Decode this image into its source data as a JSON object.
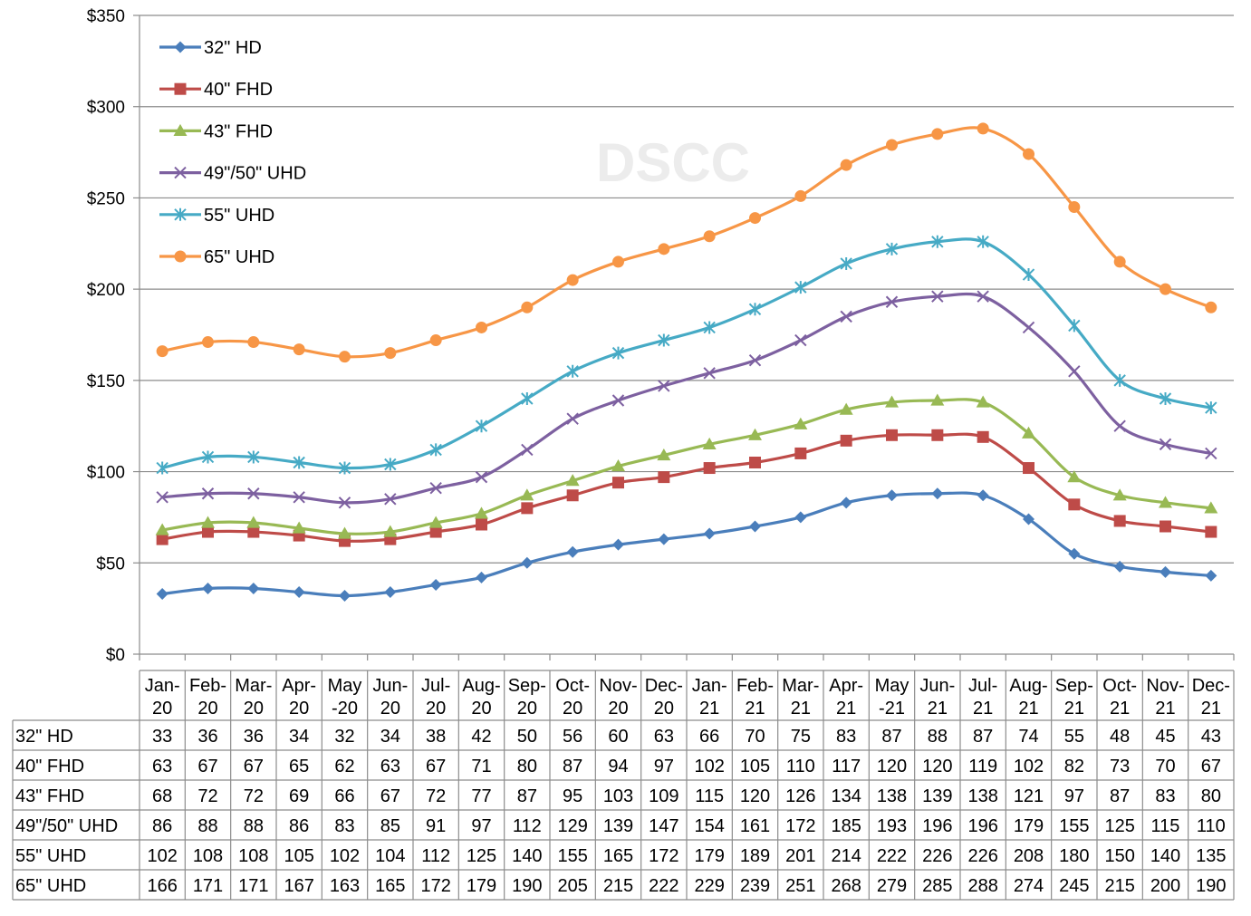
{
  "chart_data": {
    "type": "line",
    "title": "",
    "xlabel": "",
    "ylabel": "",
    "ylim": [
      0,
      350
    ],
    "yticks": [
      "$0",
      "$50",
      "$100",
      "$150",
      "$200",
      "$250",
      "$300",
      "$350"
    ],
    "ytick_values": [
      0,
      50,
      100,
      150,
      200,
      250,
      300,
      350
    ],
    "grid": "horizontal",
    "legend_position": "top-left",
    "watermark": "DSCC",
    "categories": [
      [
        "Jan-",
        "20"
      ],
      [
        "Feb-",
        "20"
      ],
      [
        "Mar-",
        "20"
      ],
      [
        "Apr-",
        "20"
      ],
      [
        "May",
        "-20"
      ],
      [
        "Jun-",
        "20"
      ],
      [
        "Jul-",
        "20"
      ],
      [
        "Aug-",
        "20"
      ],
      [
        "Sep-",
        "20"
      ],
      [
        "Oct-",
        "20"
      ],
      [
        "Nov-",
        "20"
      ],
      [
        "Dec-",
        "20"
      ],
      [
        "Jan-",
        "21"
      ],
      [
        "Feb-",
        "21"
      ],
      [
        "Mar-",
        "21"
      ],
      [
        "Apr-",
        "21"
      ],
      [
        "May",
        "-21"
      ],
      [
        "Jun-",
        "21"
      ],
      [
        "Jul-",
        "21"
      ],
      [
        "Aug-",
        "21"
      ],
      [
        "Sep-",
        "21"
      ],
      [
        "Oct-",
        "21"
      ],
      [
        "Nov-",
        "21"
      ],
      [
        "Dec-",
        "21"
      ]
    ],
    "series": [
      {
        "name": "32\" HD",
        "color": "#4a7ebb",
        "marker": "diamond",
        "values": [
          33,
          36,
          36,
          34,
          32,
          34,
          38,
          42,
          50,
          56,
          60,
          63,
          66,
          70,
          75,
          83,
          87,
          88,
          87,
          74,
          55,
          48,
          45,
          43
        ]
      },
      {
        "name": "40\" FHD",
        "color": "#be4b48",
        "marker": "square",
        "values": [
          63,
          67,
          67,
          65,
          62,
          63,
          67,
          71,
          80,
          87,
          94,
          97,
          102,
          105,
          110,
          117,
          120,
          120,
          119,
          102,
          82,
          73,
          70,
          67
        ]
      },
      {
        "name": "43\" FHD",
        "color": "#98b954",
        "marker": "triangle",
        "values": [
          68,
          72,
          72,
          69,
          66,
          67,
          72,
          77,
          87,
          95,
          103,
          109,
          115,
          120,
          126,
          134,
          138,
          139,
          138,
          121,
          97,
          87,
          83,
          80
        ]
      },
      {
        "name": "49\"/50\" UHD",
        "color": "#7d60a0",
        "marker": "x",
        "values": [
          86,
          88,
          88,
          86,
          83,
          85,
          91,
          97,
          112,
          129,
          139,
          147,
          154,
          161,
          172,
          185,
          193,
          196,
          196,
          179,
          155,
          125,
          115,
          110
        ]
      },
      {
        "name": "55\" UHD",
        "color": "#46aac5",
        "marker": "star",
        "values": [
          102,
          108,
          108,
          105,
          102,
          104,
          112,
          125,
          140,
          155,
          165,
          172,
          179,
          189,
          201,
          214,
          222,
          226,
          226,
          208,
          180,
          150,
          140,
          135
        ]
      },
      {
        "name": "65\" UHD",
        "color": "#f79646",
        "marker": "circle",
        "values": [
          166,
          171,
          171,
          167,
          163,
          165,
          172,
          179,
          190,
          205,
          215,
          222,
          229,
          239,
          251,
          268,
          279,
          285,
          288,
          274,
          245,
          215,
          200,
          190
        ]
      }
    ]
  }
}
